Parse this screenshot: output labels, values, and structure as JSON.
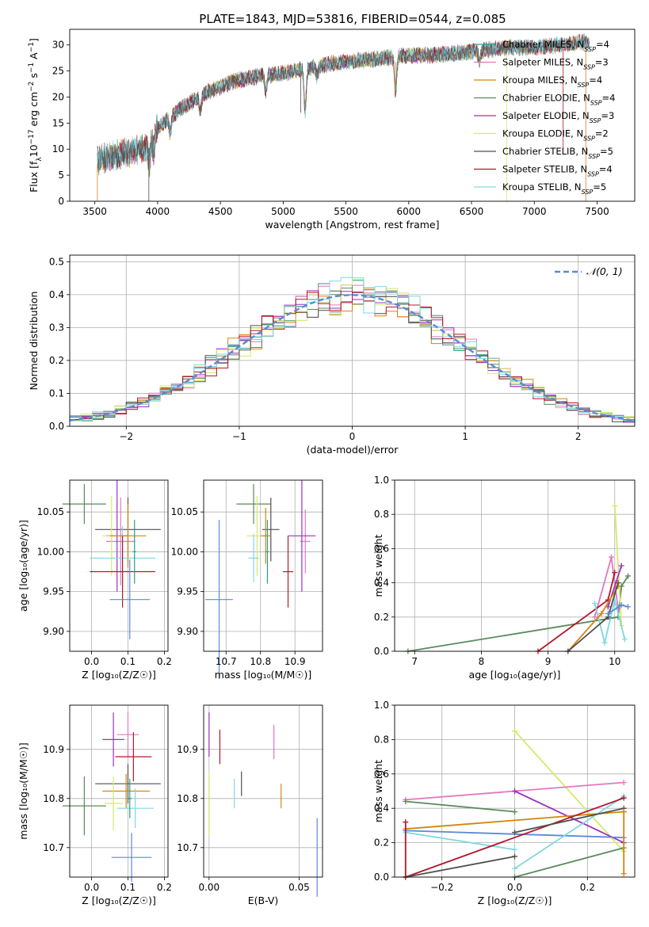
{
  "figure": {
    "title": "PLATE=1843, MJD=53816, FIBERID=0544, z=0.085"
  },
  "colors": {
    "Chabrier MILES": "#2a9d8f",
    "Salpeter MILES": "#e377c2",
    "Kroupa MILES": "#d4860b",
    "Chabrier ELODIE": "#5b8a5b",
    "Salpeter ELODIE": "#9b30c0",
    "Kroupa ELODIE": "#d8e86a",
    "Chabrier STELIB": "#505050",
    "Salpeter STELIB": "#b2182b",
    "Kroupa STELIB": "#7fd8e0",
    "normal": "#5b8ad6",
    "blue_model": "#5b7fd6",
    "orange_model": "#e07a20"
  },
  "chart_data": [
    {
      "id": "spectrum",
      "type": "line",
      "xlabel": "wavelength [Angstrom, rest frame]",
      "ylabel_parts": [
        "Flux [f",
        "λ",
        "10",
        "−17",
        " erg cm",
        "−2",
        " s",
        "−1",
        " A",
        "−1",
        "]"
      ],
      "xlim": [
        3300,
        7800
      ],
      "ylim": [
        0,
        33
      ],
      "xticks": [
        3500,
        4000,
        4500,
        5000,
        5500,
        6000,
        6500,
        7000,
        7500
      ],
      "yticks": [
        0,
        5,
        10,
        15,
        20,
        25,
        30
      ],
      "continuum": [
        [
          3520,
          8
        ],
        [
          3700,
          9
        ],
        [
          3900,
          10
        ],
        [
          4000,
          14
        ],
        [
          4200,
          18
        ],
        [
          4400,
          21
        ],
        [
          4600,
          23
        ],
        [
          4800,
          24
        ],
        [
          5000,
          24.5
        ],
        [
          5200,
          25.5
        ],
        [
          5400,
          26.5
        ],
        [
          5600,
          27
        ],
        [
          5800,
          27.5
        ],
        [
          6000,
          28
        ],
        [
          6200,
          28
        ],
        [
          6400,
          28.5
        ],
        [
          6600,
          29
        ],
        [
          6800,
          29.5
        ],
        [
          7000,
          29.5
        ],
        [
          7200,
          30
        ],
        [
          7400,
          30.5
        ],
        [
          7450,
          30.5
        ]
      ],
      "absorption": [
        [
          3934,
          4
        ],
        [
          3968,
          3
        ],
        [
          4101,
          3
        ],
        [
          4340,
          3
        ],
        [
          4861,
          3
        ],
        [
          5175,
          8
        ],
        [
          5270,
          2
        ],
        [
          5895,
          7
        ],
        [
          6563,
          2
        ]
      ],
      "spikes": [
        [
          5140,
          17
        ],
        [
          5895,
          21
        ],
        [
          6780,
          0
        ],
        [
          7230,
          10
        ],
        [
          7410,
          0
        ],
        [
          3930,
          0
        ],
        [
          3520,
          0
        ]
      ],
      "legend": [
        {
          "name": "Chabrier MILES",
          "n": "4"
        },
        {
          "name": "Salpeter MILES",
          "n": "3"
        },
        {
          "name": "Kroupa MILES",
          "n": "4"
        },
        {
          "name": "Chabrier ELODIE",
          "n": "4"
        },
        {
          "name": "Salpeter ELODIE",
          "n": "3"
        },
        {
          "name": "Kroupa ELODIE",
          "n": "2"
        },
        {
          "name": "Chabrier STELIB",
          "n": "5"
        },
        {
          "name": "Salpeter STELIB",
          "n": "4"
        },
        {
          "name": "Kroupa STELIB",
          "n": "5"
        }
      ],
      "legend_sub": "SSP",
      "legend_prefix": "N"
    },
    {
      "id": "residuals",
      "type": "histogram",
      "xlabel": "(data-model)/error",
      "ylabel": "Normed distribution",
      "xlim": [
        -2.5,
        2.5
      ],
      "ylim": [
        0,
        0.52
      ],
      "xticks": [
        -2,
        -1,
        0,
        1,
        2
      ],
      "xtick_labels": [
        "−2",
        "−1",
        "0",
        "1",
        "2"
      ],
      "yticks": [
        0,
        0.1,
        0.2,
        0.3,
        0.4,
        0.5
      ],
      "ytick_labels": [
        "0.0",
        "0.1",
        "0.2",
        "0.3",
        "0.4",
        "0.5"
      ],
      "bin_width": 0.1,
      "normal_label": "𝒩(0, 1)",
      "legend_placement": "top-right"
    },
    {
      "id": "age-vs-Z",
      "type": "errorbar",
      "xlabel": "Z [log₁₀(Z/Z☉)]",
      "ylabel": "age  [log₁₀(age/yr)]",
      "xlim": [
        -0.06,
        0.21
      ],
      "ylim": [
        9.875,
        10.09
      ],
      "xticks": [
        0.0,
        0.1,
        0.2
      ],
      "xtick_labels": [
        "0.0",
        "0.1",
        "0.2"
      ],
      "yticks": [
        9.9,
        9.95,
        10.0,
        10.05
      ],
      "ytick_labels": [
        "9.90",
        "9.95",
        "10.00",
        "10.05"
      ],
      "points": [
        {
          "series": "Chabrier ELODIE",
          "x": -0.02,
          "xerr": 0.06,
          "y": 10.06,
          "yerr": 0.025
        },
        {
          "series": "Chabrier STELIB",
          "x": 0.1,
          "xerr": 0.09,
          "y": 10.028,
          "yerr": 0.04
        },
        {
          "series": "Salpeter MILES",
          "x": 0.08,
          "xerr": 0.04,
          "y": 10.013,
          "yerr": 0.055
        },
        {
          "series": "Salpeter ELODIE",
          "x": 0.07,
          "xerr": 0.03,
          "y": 10.02,
          "yerr": 0.07
        },
        {
          "series": "Kroupa ELODIE",
          "x": 0.055,
          "xerr": 0.025,
          "y": 10.02,
          "yerr": 0.05
        },
        {
          "series": "Kroupa MILES",
          "x": 0.1,
          "xerr": 0.05,
          "y": 10.02,
          "yerr": 0.04
        },
        {
          "series": "Kroupa STELIB",
          "x": 0.085,
          "xerr": 0.09,
          "y": 9.992,
          "yerr": 0.04
        },
        {
          "series": "Salpeter STELIB",
          "x": 0.085,
          "xerr": 0.09,
          "y": 9.975,
          "yerr": 0.045
        },
        {
          "series": "Chabrier MILES",
          "x": 0.118,
          "xerr": 0.005,
          "y": 10.0,
          "yerr": 0.04
        },
        {
          "series": "normal",
          "x": 0.105,
          "xerr": 0.055,
          "y": 9.94,
          "yerr": 0.05
        }
      ]
    },
    {
      "id": "age-vs-mass",
      "type": "errorbar",
      "xlabel": "mass [log₁₀(M/M☉)]",
      "ylabel": "",
      "xlim": [
        10.635,
        10.98
      ],
      "ylim": [
        9.875,
        10.09
      ],
      "xticks": [
        10.7,
        10.8,
        10.9
      ],
      "xtick_labels": [
        "10.7",
        "10.8",
        "10.9"
      ],
      "yticks": [
        9.9,
        9.95,
        10.0,
        10.05
      ],
      "ytick_labels": [
        "9.90",
        "9.95",
        "10.00",
        "10.05"
      ],
      "points": [
        {
          "series": "Chabrier ELODIE",
          "x": 10.78,
          "xerr": 0.05,
          "y": 10.06,
          "yerr": 0.025
        },
        {
          "series": "Chabrier STELIB",
          "x": 10.83,
          "xerr": 0.025,
          "y": 10.028,
          "yerr": 0.04
        },
        {
          "series": "Salpeter MILES",
          "x": 10.93,
          "xerr": 0.015,
          "y": 10.013,
          "yerr": 0.04
        },
        {
          "series": "Salpeter ELODIE",
          "x": 10.92,
          "xerr": 0.04,
          "y": 10.02,
          "yerr": 0.07
        },
        {
          "series": "Kroupa ELODIE",
          "x": 10.79,
          "xerr": 0.03,
          "y": 10.02,
          "yerr": 0.05
        },
        {
          "series": "Kroupa MILES",
          "x": 10.815,
          "xerr": 0.015,
          "y": 10.02,
          "yerr": 0.035
        },
        {
          "series": "Kroupa STELIB",
          "x": 10.78,
          "xerr": 0.015,
          "y": 9.992,
          "yerr": 0.03
        },
        {
          "series": "Salpeter STELIB",
          "x": 10.88,
          "xerr": 0.015,
          "y": 9.975,
          "yerr": 0.045
        },
        {
          "series": "Chabrier MILES",
          "x": 10.82,
          "xerr": 0.005,
          "y": 10.0,
          "yerr": 0.04
        },
        {
          "series": "normal",
          "x": 10.68,
          "xerr": 0.04,
          "y": 9.94,
          "yerr": 0.1
        }
      ]
    },
    {
      "id": "massweight-vs-age",
      "type": "line",
      "xlabel": "age  [log₁₀(age/yr)]",
      "ylabel": "mass weight",
      "xlim": [
        6.7,
        10.3
      ],
      "ylim": [
        0,
        1.0
      ],
      "xticks": [
        7,
        8,
        9,
        10
      ],
      "xtick_labels": [
        "7",
        "8",
        "9",
        "10"
      ],
      "yticks": [
        0,
        0.2,
        0.4,
        0.6,
        0.8,
        1.0
      ],
      "ytick_labels": [
        "0.0",
        "0.2",
        "0.4",
        "0.6",
        "0.8",
        "1.0"
      ],
      "grid": true,
      "series": [
        {
          "name": "Chabrier ELODIE",
          "points": [
            [
              6.9,
              0.0
            ],
            [
              10.05,
              0.2
            ],
            [
              10.1,
              0.38
            ],
            [
              10.2,
              0.44
            ]
          ]
        },
        {
          "name": "Kroupa ELODIE",
          "points": [
            [
              10.0,
              0.85
            ],
            [
              10.1,
              0.15
            ]
          ]
        },
        {
          "name": "Salpeter MILES",
          "points": [
            [
              9.7,
              0.2
            ],
            [
              9.95,
              0.55
            ],
            [
              10.05,
              0.25
            ]
          ]
        },
        {
          "name": "Salpeter STELIB",
          "points": [
            [
              8.85,
              0.0
            ],
            [
              9.9,
              0.3
            ],
            [
              10.0,
              0.46
            ]
          ]
        },
        {
          "name": "Salpeter ELODIE",
          "points": [
            [
              9.9,
              0.26
            ],
            [
              10.1,
              0.5
            ]
          ]
        },
        {
          "name": "Kroupa STELIB",
          "points": [
            [
              9.7,
              0.28
            ],
            [
              9.85,
              0.05
            ],
            [
              10.0,
              0.3
            ],
            [
              10.15,
              0.07
            ]
          ]
        },
        {
          "name": "Kroupa MILES",
          "points": [
            [
              9.3,
              0.0
            ],
            [
              9.8,
              0.22
            ],
            [
              10.05,
              0.38
            ]
          ]
        },
        {
          "name": "Chabrier STELIB",
          "points": [
            [
              9.3,
              0.0
            ],
            [
              9.9,
              0.2
            ],
            [
              10.05,
              0.4
            ]
          ]
        },
        {
          "name": "normal",
          "points": [
            [
              9.9,
              0.22
            ],
            [
              10.1,
              0.27
            ],
            [
              10.2,
              0.26
            ]
          ]
        }
      ]
    },
    {
      "id": "mass-vs-Z",
      "type": "errorbar",
      "xlabel": "Z [log₁₀(Z/Z☉)]",
      "ylabel": "mass [log₁₀(M/M☉)]",
      "xlim": [
        -0.06,
        0.21
      ],
      "ylim": [
        10.64,
        10.99
      ],
      "xticks": [
        0.0,
        0.1,
        0.2
      ],
      "xtick_labels": [
        "0.0",
        "0.1",
        "0.2"
      ],
      "yticks": [
        10.7,
        10.8,
        10.9
      ],
      "ytick_labels": [
        "10.7",
        "10.8",
        "10.9"
      ],
      "points": [
        {
          "series": "Salpeter MILES",
          "x": 0.1,
          "xerr": 0.03,
          "y": 10.93,
          "yerr": 0.045
        },
        {
          "series": "Salpeter ELODIE",
          "x": 0.06,
          "xerr": 0.03,
          "y": 10.92,
          "yerr": 0.055
        },
        {
          "series": "Salpeter STELIB",
          "x": 0.115,
          "xerr": 0.05,
          "y": 10.885,
          "yerr": 0.05
        },
        {
          "series": "Chabrier STELIB",
          "x": 0.1,
          "xerr": 0.09,
          "y": 10.83,
          "yerr": 0.04
        },
        {
          "series": "Kroupa MILES",
          "x": 0.095,
          "xerr": 0.065,
          "y": 10.815,
          "yerr": 0.035
        },
        {
          "series": "Chabrier ELODIE",
          "x": -0.02,
          "xerr": 0.06,
          "y": 10.785,
          "yerr": 0.06
        },
        {
          "series": "Kroupa ELODIE",
          "x": 0.06,
          "xerr": 0.025,
          "y": 10.79,
          "yerr": 0.055
        },
        {
          "series": "Kroupa STELIB",
          "x": 0.12,
          "xerr": 0.05,
          "y": 10.78,
          "yerr": 0.04
        },
        {
          "series": "Chabrier MILES",
          "x": 0.105,
          "xerr": 0.005,
          "y": 10.8,
          "yerr": 0.04
        },
        {
          "series": "normal",
          "x": 0.11,
          "xerr": 0.055,
          "y": 10.68,
          "yerr": 0.05
        }
      ]
    },
    {
      "id": "mass-vs-EBV",
      "type": "errorbar",
      "xlabel": "E(B-V)",
      "ylabel": "",
      "xlim": [
        -0.003,
        0.063
      ],
      "ylim": [
        10.64,
        10.99
      ],
      "xticks": [
        0.0,
        0.05
      ],
      "xtick_labels": [
        "0.00",
        "0.05"
      ],
      "yticks": [
        10.7,
        10.8,
        10.9
      ],
      "ytick_labels": [
        "10.7",
        "10.8",
        "10.9"
      ],
      "points": [
        {
          "series": "Salpeter ELODIE",
          "x": 0.0,
          "xerr": 0,
          "y": 10.93,
          "yerr": 0.045
        },
        {
          "series": "Kroupa ELODIE",
          "x": 0.0,
          "xerr": 0,
          "y": 10.79,
          "yerr": 0.065
        },
        {
          "series": "Salpeter STELIB",
          "x": 0.006,
          "xerr": 0,
          "y": 10.905,
          "yerr": 0.035
        },
        {
          "series": "Chabrier STELIB",
          "x": 0.018,
          "xerr": 0,
          "y": 10.83,
          "yerr": 0.025
        },
        {
          "series": "Kroupa STELIB",
          "x": 0.014,
          "xerr": 0,
          "y": 10.81,
          "yerr": 0.03
        },
        {
          "series": "Salpeter MILES",
          "x": 0.036,
          "xerr": 0,
          "y": 10.915,
          "yerr": 0.035
        },
        {
          "series": "Kroupa MILES",
          "x": 0.04,
          "xerr": 0,
          "y": 10.805,
          "yerr": 0.025
        },
        {
          "series": "normal",
          "x": 0.06,
          "xerr": 0,
          "y": 10.68,
          "yerr": 0.08
        }
      ]
    },
    {
      "id": "massweight-vs-Z",
      "type": "line",
      "xlabel": "Z [log₁₀(Z/Z☉)]",
      "ylabel": "mass weight",
      "xlim": [
        -0.33,
        0.33
      ],
      "ylim": [
        0,
        1.0
      ],
      "xticks": [
        -0.2,
        0.0,
        0.2
      ],
      "xtick_labels": [
        "−0.2",
        "0.0",
        "0.2"
      ],
      "yticks": [
        0,
        0.2,
        0.4,
        0.6,
        0.8,
        1.0
      ],
      "ytick_labels": [
        "0.0",
        "0.2",
        "0.4",
        "0.6",
        "0.8",
        "1.0"
      ],
      "grid": true,
      "series": [
        {
          "name": "Kroupa ELODIE",
          "points": [
            [
              0.0,
              0.85
            ],
            [
              0.3,
              0.15
            ]
          ]
        },
        {
          "name": "Salpeter MILES",
          "points": [
            [
              -0.3,
              0.45
            ],
            [
              0.0,
              0.5
            ],
            [
              0.3,
              0.55
            ]
          ]
        },
        {
          "name": "Salpeter ELODIE",
          "points": [
            [
              0.0,
              0.5
            ],
            [
              0.3,
              0.2
            ]
          ]
        },
        {
          "name": "Chabrier ELODIE",
          "points": [
            [
              -0.3,
              0.44
            ],
            [
              0.0,
              0.38
            ]
          ]
        },
        {
          "name": "Chabrier ELODIE",
          "points": [
            [
              0.0,
              0.0
            ],
            [
              0.3,
              0.17
            ]
          ]
        },
        {
          "name": "Kroupa MILES",
          "points": [
            [
              -0.3,
              0.28
            ],
            [
              0.3,
              0.38
            ]
          ]
        },
        {
          "name": "normal",
          "points": [
            [
              -0.3,
              0.27
            ],
            [
              0.3,
              0.23
            ]
          ]
        },
        {
          "name": "Kroupa STELIB",
          "points": [
            [
              -0.3,
              0.26
            ],
            [
              0.0,
              0.16
            ]
          ]
        },
        {
          "name": "Kroupa STELIB",
          "points": [
            [
              0.0,
              0.05
            ],
            [
              0.3,
              0.47
            ]
          ]
        },
        {
          "name": "Salpeter STELIB",
          "points": [
            [
              -0.3,
              0.0
            ],
            [
              0.3,
              0.46
            ]
          ]
        },
        {
          "name": "Chabrier STELIB",
          "points": [
            [
              -0.3,
              0.0
            ],
            [
              0.0,
              0.12
            ]
          ]
        },
        {
          "name": "Chabrier STELIB",
          "points": [
            [
              0.0,
              0.26
            ],
            [
              0.3,
              0.4
            ]
          ]
        },
        {
          "name": "Salpeter STELIB",
          "points": [
            [
              -0.3,
              0.32
            ],
            [
              -0.3,
              0.0
            ]
          ]
        },
        {
          "name": "Kroupa MILES",
          "points": [
            [
              0.3,
              0.02
            ],
            [
              0.3,
              0.38
            ]
          ]
        }
      ]
    }
  ]
}
